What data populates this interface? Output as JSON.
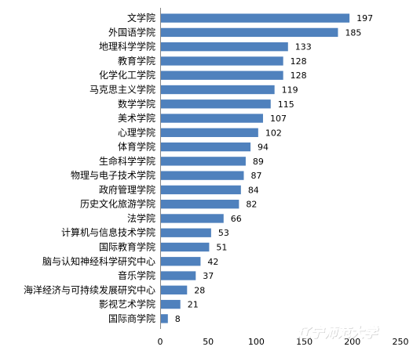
{
  "chart_data": {
    "type": "bar",
    "orientation": "horizontal",
    "categories": [
      "文学院",
      "外国语学院",
      "地理科学学院",
      "教育学院",
      "化学化工学院",
      "马克思主义学院",
      "数学学院",
      "美术学院",
      "心理学院",
      "体育学院",
      "生命科学学院",
      "物理与电子技术学院",
      "政府管理学院",
      "历史文化旅游学院",
      "法学院",
      "计算机与信息技术学院",
      "国际教育学院",
      "脑与认知神经科学研究中心",
      "音乐学院",
      "海洋经济与可持续发展研究中心",
      "影视艺术学院",
      "国际商学院"
    ],
    "values": [
      197,
      185,
      133,
      128,
      128,
      119,
      115,
      107,
      102,
      94,
      89,
      87,
      84,
      82,
      66,
      53,
      51,
      42,
      37,
      28,
      21,
      8
    ],
    "xlim": [
      0,
      250
    ],
    "xticks": [
      0,
      50,
      100,
      150,
      200,
      250
    ],
    "bar_color": "#4f81bd",
    "grid": false,
    "data_labels": true
  },
  "watermark": "辽宁师范大学"
}
